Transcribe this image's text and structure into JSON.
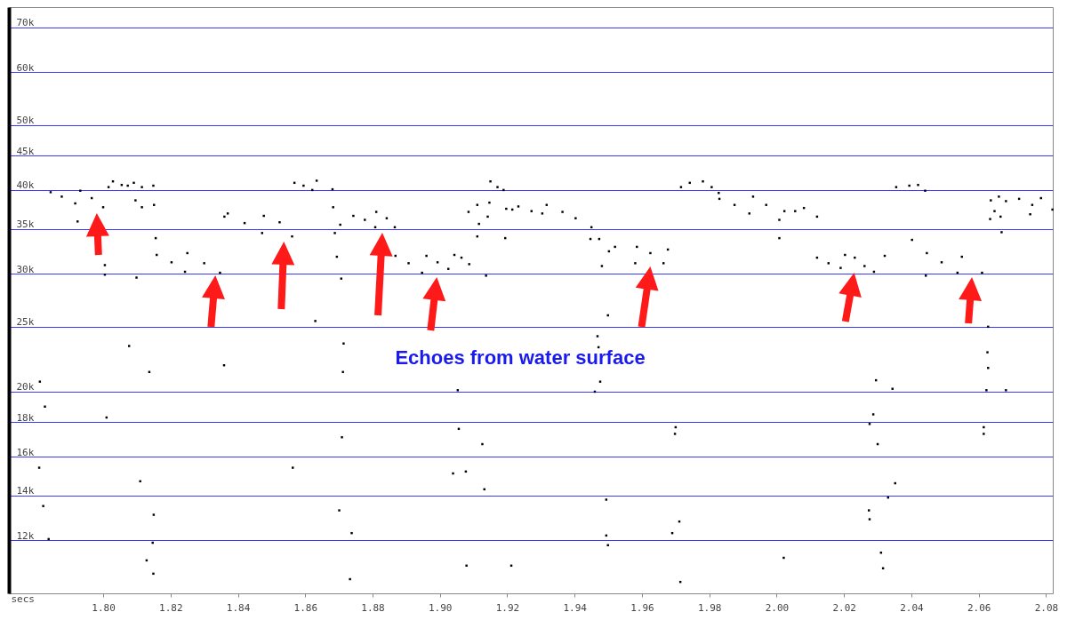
{
  "chart_data": {
    "type": "scatter",
    "xlabel": "secs",
    "annotations": [
      "Echoes from water surface"
    ],
    "series": [
      {
        "color": "#000000",
        "x": [
          1.7844,
          1.7877,
          1.7917,
          1.7932,
          1.7966,
          1.8,
          1.8016,
          1.8029,
          1.8055,
          1.8073,
          1.8091,
          1.8115,
          1.8149,
          1.8096,
          1.8115,
          1.8151,
          1.7924,
          1.8005,
          1.8077,
          1.8137,
          1.8359,
          1.7812,
          1.7827,
          1.801,
          1.781,
          1.7822,
          1.7838,
          1.811,
          1.815,
          1.8147,
          1.8129,
          1.8149,
          1.8709,
          1.8701,
          1.8738,
          1.8733,
          1.8563,
          1.8712,
          1.8714,
          1.863,
          1.9053,
          1.9056,
          1.9039,
          1.9077,
          1.9126,
          1.9132,
          1.9079,
          1.9212,
          1.9499,
          1.9468,
          1.9471,
          1.9476,
          1.946,
          1.97,
          1.9698,
          1.9494,
          1.9494,
          1.9499,
          1.9711,
          1.969,
          1.9714,
          2.0021,
          2.0295,
          2.0344,
          2.0287,
          2.0276,
          2.03,
          2.0352,
          2.0331,
          2.0274,
          2.0276,
          2.031,
          2.0316,
          2.0628,
          2.0626,
          2.0628,
          2.0623,
          2.0681,
          2.0615,
          2.0615,
          1.8159,
          1.8203,
          1.8243,
          1.825,
          1.83,
          1.8347,
          1.836,
          1.837,
          1.842,
          1.8472,
          1.8477,
          1.8524,
          1.8561,
          1.8568,
          1.8595,
          1.8621,
          1.8634,
          1.8681,
          1.8683,
          1.8704,
          1.8688,
          1.8694,
          1.8707,
          1.8156,
          1.8005,
          1.8099,
          1.8743,
          1.8777,
          1.8808,
          1.8811,
          1.8842,
          1.8866,
          1.8868,
          1.8907,
          1.8947,
          1.896,
          1.8993,
          1.9025,
          1.9043,
          1.9064,
          1.9087,
          1.9111,
          1.9085,
          1.9111,
          1.9147,
          1.9142,
          1.9116,
          1.9194,
          1.9197,
          1.9137,
          1.915,
          1.9171,
          1.9189,
          1.9215,
          1.9233,
          1.9272,
          1.9304,
          1.9317,
          1.9364,
          1.9403,
          1.945,
          1.9447,
          1.9473,
          1.9481,
          1.9502,
          1.952,
          1.958,
          1.9585,
          1.9625,
          1.9664,
          1.9677,
          1.9716,
          1.9742,
          1.9781,
          1.9807,
          1.9828,
          1.983,
          1.9875,
          1.9919,
          1.993,
          1.9969,
          2.0008,
          2.0023,
          2.0055,
          2.0081,
          2.012,
          2.0008,
          2.012,
          2.0154,
          2.019,
          2.0203,
          2.0232,
          2.0261,
          2.0321,
          2.0289,
          2.0402,
          2.0355,
          2.0394,
          2.042,
          2.0441,
          2.0446,
          2.049,
          2.0537,
          2.055,
          2.061,
          2.0443,
          2.0636,
          2.066,
          2.0681,
          2.072,
          2.0759,
          2.0785,
          2.0819,
          2.0634,
          2.0647,
          2.0665,
          2.0668,
          2.0753
        ],
        "values": [
          39700,
          39100,
          38200,
          39900,
          38900,
          37700,
          40400,
          41200,
          40700,
          40600,
          41000,
          40400,
          40600,
          38600,
          37700,
          38000,
          35900,
          29900,
          23400,
          21400,
          21900,
          20700,
          19000,
          18300,
          15400,
          13500,
          12050,
          14700,
          13100,
          11900,
          11200,
          10700,
          17100,
          13300,
          12300,
          10500,
          15400,
          21400,
          23600,
          25500,
          20100,
          17600,
          15100,
          15200,
          16700,
          14300,
          11000,
          11000,
          26000,
          24200,
          23300,
          20700,
          20000,
          17700,
          17300,
          13800,
          12200,
          11800,
          12800,
          12300,
          10400,
          11300,
          20800,
          20200,
          18500,
          17900,
          16700,
          14600,
          13900,
          13300,
          12900,
          11500,
          10900,
          25000,
          22900,
          21700,
          20100,
          20100,
          17700,
          17300,
          32000,
          31200,
          30200,
          32200,
          31100,
          30100,
          36500,
          36900,
          35700,
          34500,
          36600,
          35800,
          34100,
          41000,
          40600,
          40000,
          41300,
          40100,
          37700,
          35500,
          34500,
          31800,
          29500,
          33900,
          30900,
          29600,
          36600,
          36100,
          35200,
          37100,
          36300,
          35200,
          31900,
          31100,
          30100,
          31900,
          31200,
          30500,
          32000,
          31700,
          31000,
          34100,
          37100,
          38000,
          38300,
          36500,
          35600,
          33900,
          37500,
          29800,
          41200,
          40400,
          40000,
          37400,
          37800,
          37200,
          36900,
          38000,
          37100,
          36300,
          35200,
          33800,
          33800,
          30800,
          32400,
          32900,
          31100,
          32900,
          32200,
          31100,
          32600,
          40400,
          41000,
          41200,
          40400,
          39600,
          38800,
          38000,
          36900,
          39100,
          38000,
          36100,
          37200,
          37200,
          37600,
          36500,
          33900,
          31700,
          31100,
          30600,
          32000,
          31700,
          30800,
          31900,
          30200,
          33700,
          40400,
          40600,
          40700,
          39900,
          32200,
          31200,
          30100,
          31800,
          30100,
          29800,
          38600,
          39100,
          38500,
          38800,
          38000,
          38900,
          37400,
          36200,
          37200,
          36500,
          34600,
          36800
        ]
      }
    ],
    "xlim": [
      1.772,
      2.082
    ],
    "xticks": [
      {
        "value": 1.8,
        "label": "1.80"
      },
      1.82,
      1.84,
      1.86,
      1.88,
      {
        "value": 1.9,
        "label": "1.90"
      },
      1.92,
      1.94,
      1.96,
      1.98,
      {
        "value": 2,
        "label": "2.00"
      },
      2.02,
      2.04,
      2.06,
      2.08
    ],
    "ylim": [
      10000,
      75000
    ],
    "yticks": [
      {
        "value": 12000,
        "label": "12k"
      },
      {
        "value": 14000,
        "label": "14k"
      },
      {
        "value": 16000,
        "label": "16k"
      },
      {
        "value": 18000,
        "label": "18k"
      },
      {
        "value": 20000,
        "label": "20k"
      },
      {
        "value": 25000,
        "label": "25k"
      },
      {
        "value": 30000,
        "label": "30k"
      },
      {
        "value": 35000,
        "label": "35k"
      },
      {
        "value": 40000,
        "label": "40k"
      },
      {
        "value": 45000,
        "label": "45k"
      },
      {
        "value": 50000,
        "label": "50k"
      },
      {
        "value": 60000,
        "label": "60k"
      },
      {
        "value": 70000,
        "label": "70k"
      }
    ],
    "log": "y",
    "grid": "y",
    "marker": "square"
  }
}
